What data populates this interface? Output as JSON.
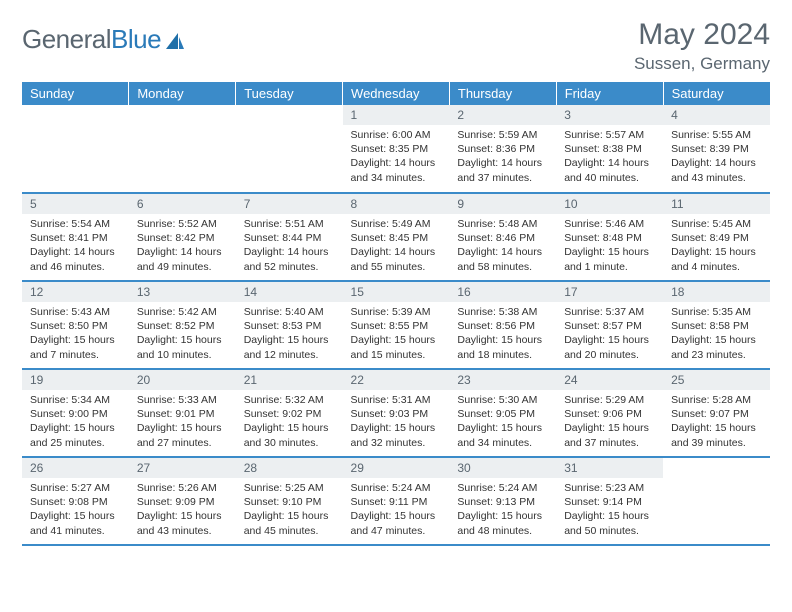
{
  "brand": {
    "part1": "General",
    "part2": "Blue"
  },
  "title": "May 2024",
  "location": "Sussen, Germany",
  "colors": {
    "header_bg": "#3b8bc9",
    "header_text": "#ffffff",
    "daynum_bg": "#eceff1",
    "text_muted": "#5a6670",
    "row_border": "#3b8bc9"
  },
  "weekdays": [
    "Sunday",
    "Monday",
    "Tuesday",
    "Wednesday",
    "Thursday",
    "Friday",
    "Saturday"
  ],
  "weeks": [
    [
      null,
      null,
      null,
      {
        "n": "1",
        "sr": "6:00 AM",
        "ss": "8:35 PM",
        "dl": "14 hours and 34 minutes."
      },
      {
        "n": "2",
        "sr": "5:59 AM",
        "ss": "8:36 PM",
        "dl": "14 hours and 37 minutes."
      },
      {
        "n": "3",
        "sr": "5:57 AM",
        "ss": "8:38 PM",
        "dl": "14 hours and 40 minutes."
      },
      {
        "n": "4",
        "sr": "5:55 AM",
        "ss": "8:39 PM",
        "dl": "14 hours and 43 minutes."
      }
    ],
    [
      {
        "n": "5",
        "sr": "5:54 AM",
        "ss": "8:41 PM",
        "dl": "14 hours and 46 minutes."
      },
      {
        "n": "6",
        "sr": "5:52 AM",
        "ss": "8:42 PM",
        "dl": "14 hours and 49 minutes."
      },
      {
        "n": "7",
        "sr": "5:51 AM",
        "ss": "8:44 PM",
        "dl": "14 hours and 52 minutes."
      },
      {
        "n": "8",
        "sr": "5:49 AM",
        "ss": "8:45 PM",
        "dl": "14 hours and 55 minutes."
      },
      {
        "n": "9",
        "sr": "5:48 AM",
        "ss": "8:46 PM",
        "dl": "14 hours and 58 minutes."
      },
      {
        "n": "10",
        "sr": "5:46 AM",
        "ss": "8:48 PM",
        "dl": "15 hours and 1 minute."
      },
      {
        "n": "11",
        "sr": "5:45 AM",
        "ss": "8:49 PM",
        "dl": "15 hours and 4 minutes."
      }
    ],
    [
      {
        "n": "12",
        "sr": "5:43 AM",
        "ss": "8:50 PM",
        "dl": "15 hours and 7 minutes."
      },
      {
        "n": "13",
        "sr": "5:42 AM",
        "ss": "8:52 PM",
        "dl": "15 hours and 10 minutes."
      },
      {
        "n": "14",
        "sr": "5:40 AM",
        "ss": "8:53 PM",
        "dl": "15 hours and 12 minutes."
      },
      {
        "n": "15",
        "sr": "5:39 AM",
        "ss": "8:55 PM",
        "dl": "15 hours and 15 minutes."
      },
      {
        "n": "16",
        "sr": "5:38 AM",
        "ss": "8:56 PM",
        "dl": "15 hours and 18 minutes."
      },
      {
        "n": "17",
        "sr": "5:37 AM",
        "ss": "8:57 PM",
        "dl": "15 hours and 20 minutes."
      },
      {
        "n": "18",
        "sr": "5:35 AM",
        "ss": "8:58 PM",
        "dl": "15 hours and 23 minutes."
      }
    ],
    [
      {
        "n": "19",
        "sr": "5:34 AM",
        "ss": "9:00 PM",
        "dl": "15 hours and 25 minutes."
      },
      {
        "n": "20",
        "sr": "5:33 AM",
        "ss": "9:01 PM",
        "dl": "15 hours and 27 minutes."
      },
      {
        "n": "21",
        "sr": "5:32 AM",
        "ss": "9:02 PM",
        "dl": "15 hours and 30 minutes."
      },
      {
        "n": "22",
        "sr": "5:31 AM",
        "ss": "9:03 PM",
        "dl": "15 hours and 32 minutes."
      },
      {
        "n": "23",
        "sr": "5:30 AM",
        "ss": "9:05 PM",
        "dl": "15 hours and 34 minutes."
      },
      {
        "n": "24",
        "sr": "5:29 AM",
        "ss": "9:06 PM",
        "dl": "15 hours and 37 minutes."
      },
      {
        "n": "25",
        "sr": "5:28 AM",
        "ss": "9:07 PM",
        "dl": "15 hours and 39 minutes."
      }
    ],
    [
      {
        "n": "26",
        "sr": "5:27 AM",
        "ss": "9:08 PM",
        "dl": "15 hours and 41 minutes."
      },
      {
        "n": "27",
        "sr": "5:26 AM",
        "ss": "9:09 PM",
        "dl": "15 hours and 43 minutes."
      },
      {
        "n": "28",
        "sr": "5:25 AM",
        "ss": "9:10 PM",
        "dl": "15 hours and 45 minutes."
      },
      {
        "n": "29",
        "sr": "5:24 AM",
        "ss": "9:11 PM",
        "dl": "15 hours and 47 minutes."
      },
      {
        "n": "30",
        "sr": "5:24 AM",
        "ss": "9:13 PM",
        "dl": "15 hours and 48 minutes."
      },
      {
        "n": "31",
        "sr": "5:23 AM",
        "ss": "9:14 PM",
        "dl": "15 hours and 50 minutes."
      },
      null
    ]
  ]
}
